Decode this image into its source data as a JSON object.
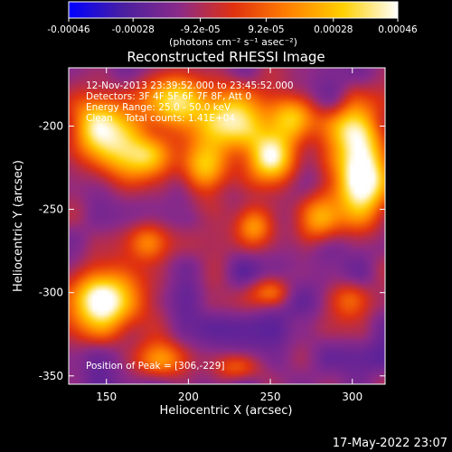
{
  "chart_data": {
    "type": "heatmap",
    "title": "Reconstructed RHESSI Image",
    "xlabel": "Heliocentric X (arcsec)",
    "ylabel": "Heliocentric Y (arcsec)",
    "xlim": [
      127,
      320
    ],
    "ylim": [
      -355,
      -165
    ],
    "x_ticks": [
      150,
      200,
      250,
      300
    ],
    "y_ticks": [
      -350,
      -300,
      -250,
      -200
    ],
    "colorbar": {
      "min": -0.00046,
      "max": 0.00046,
      "tick_values": [
        -0.00046,
        -0.00028,
        -9.2e-05,
        9.2e-05,
        0.00028,
        0.00046
      ],
      "tick_labels": [
        "-0.00046",
        "-0.00028",
        "-9.2e-05",
        "9.2e-05",
        "0.00028",
        "0.00046"
      ],
      "unit_label": "(photons cm⁻² s⁻¹ asec⁻²)",
      "colors": [
        "#0000ff",
        "#4a1fa0",
        "#8a2a8a",
        "#e03010",
        "#ff8000",
        "#ffd000",
        "#ffffff"
      ]
    },
    "annotations": [
      "12-Nov-2013 23:39:52.000 to 23:45:52.000",
      "Detectors: 3F 4F 5F 6F 7F 8F, Att 0",
      "Energy Range: 25.0 - 50.0 keV",
      "Clean    Total counts: 1.41E+04"
    ],
    "peak_label": "Position of Peak = [306,-229]",
    "peak": [
      306,
      -229
    ],
    "sources": [
      {
        "x": 145,
        "y": -200,
        "sx": 12,
        "sy": 14,
        "amp": 1.05
      },
      {
        "x": 168,
        "y": -218,
        "sx": 14,
        "sy": 10,
        "amp": 0.95
      },
      {
        "x": 148,
        "y": -305,
        "sx": 16,
        "sy": 14,
        "amp": 1.1
      },
      {
        "x": 188,
        "y": -185,
        "sx": 14,
        "sy": 12,
        "amp": 0.9
      },
      {
        "x": 210,
        "y": -225,
        "sx": 10,
        "sy": 12,
        "amp": 0.8
      },
      {
        "x": 225,
        "y": -195,
        "sx": 16,
        "sy": 14,
        "amp": 0.95
      },
      {
        "x": 250,
        "y": -220,
        "sx": 12,
        "sy": 14,
        "amp": 0.9
      },
      {
        "x": 265,
        "y": -195,
        "sx": 10,
        "sy": 10,
        "amp": 0.8
      },
      {
        "x": 280,
        "y": -255,
        "sx": 10,
        "sy": 10,
        "amp": 0.75
      },
      {
        "x": 240,
        "y": -260,
        "sx": 8,
        "sy": 8,
        "amp": 0.6
      },
      {
        "x": 306,
        "y": -229,
        "sx": 12,
        "sy": 20,
        "amp": 1.25
      },
      {
        "x": 300,
        "y": -200,
        "sx": 10,
        "sy": 10,
        "amp": 0.6
      },
      {
        "x": 250,
        "y": -300,
        "sx": 8,
        "sy": 6,
        "amp": 0.55
      },
      {
        "x": 185,
        "y": -340,
        "sx": 14,
        "sy": 8,
        "amp": 0.65
      },
      {
        "x": 230,
        "y": -345,
        "sx": 10,
        "sy": 6,
        "amp": 0.5
      },
      {
        "x": 295,
        "y": -305,
        "sx": 10,
        "sy": 8,
        "amp": 0.45
      },
      {
        "x": 175,
        "y": -270,
        "sx": 8,
        "sy": 8,
        "amp": 0.4
      }
    ]
  },
  "footer_timestamp": "17-May-2022 23:07"
}
